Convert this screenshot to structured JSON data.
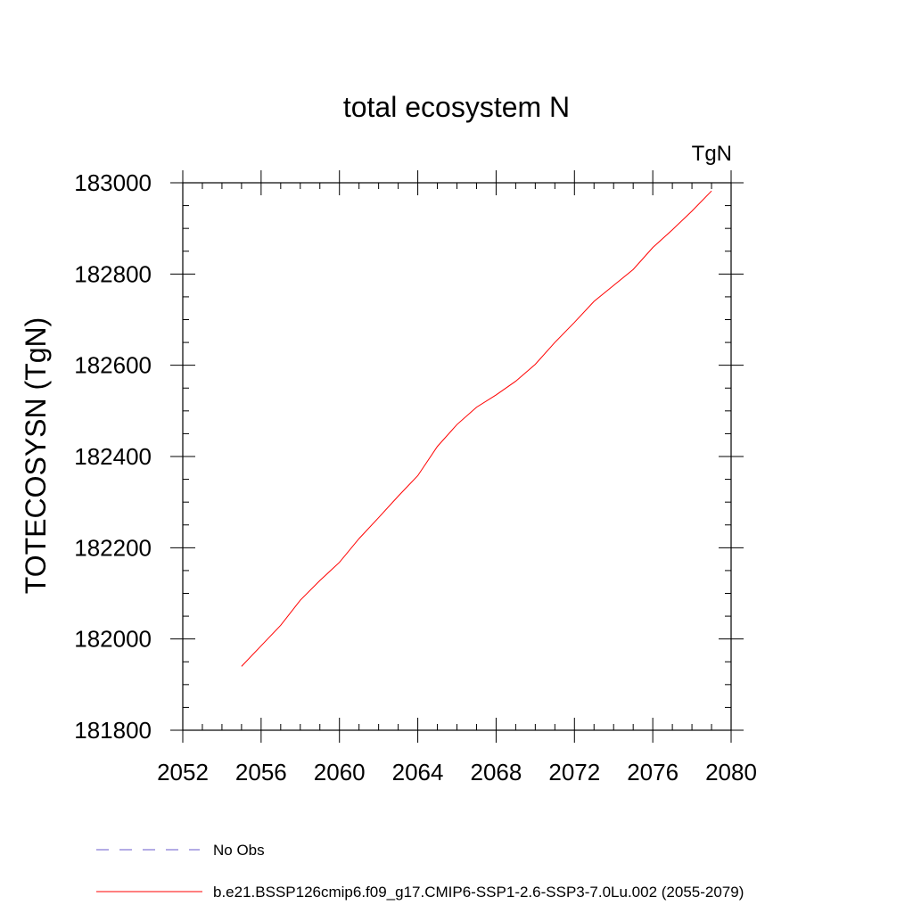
{
  "chart_data": {
    "type": "line",
    "title": "total ecosystem N",
    "units_label": "TgN",
    "ylabel": "TOTECOSYSN  (TgN)",
    "xlabel": "",
    "xlim": [
      2052,
      2080
    ],
    "ylim": [
      181800,
      183000
    ],
    "x_major_ticks": [
      2052,
      2056,
      2060,
      2064,
      2068,
      2072,
      2076,
      2080
    ],
    "x_tick_labels": [
      "2052",
      "2056",
      "2060",
      "2064",
      "2068",
      "2072",
      "2076",
      "2080"
    ],
    "x_minor_step": 1,
    "y_major_ticks": [
      181800,
      182000,
      182200,
      182400,
      182600,
      182800,
      183000
    ],
    "y_tick_labels": [
      "181800",
      "182000",
      "182200",
      "182400",
      "182600",
      "182800",
      "183000"
    ],
    "y_minor_step": 50,
    "grid": false,
    "legend_placement": "bottom",
    "series": [
      {
        "name": "b.e21.BSSP126cmip6.f09_g17.CMIP6-SSP1-2.6-SSP3-7.0Lu.002 (2055-2079)",
        "color": "#ff0000",
        "style": "solid",
        "x": [
          2055,
          2056,
          2057,
          2058,
          2059,
          2060,
          2061,
          2062,
          2063,
          2064,
          2065,
          2066,
          2067,
          2068,
          2069,
          2070,
          2071,
          2072,
          2073,
          2074,
          2075,
          2076,
          2077,
          2078,
          2079
        ],
        "y": [
          181940,
          181985,
          182030,
          182085,
          182128,
          182168,
          182220,
          182266,
          182313,
          182358,
          182422,
          182470,
          182508,
          182535,
          182565,
          182602,
          182650,
          182694,
          182740,
          182775,
          182810,
          182858,
          182897,
          182938,
          182982
        ]
      },
      {
        "name": "No Obs",
        "color": "#6a5acd",
        "style": "dashed",
        "x": [],
        "y": []
      }
    ]
  }
}
